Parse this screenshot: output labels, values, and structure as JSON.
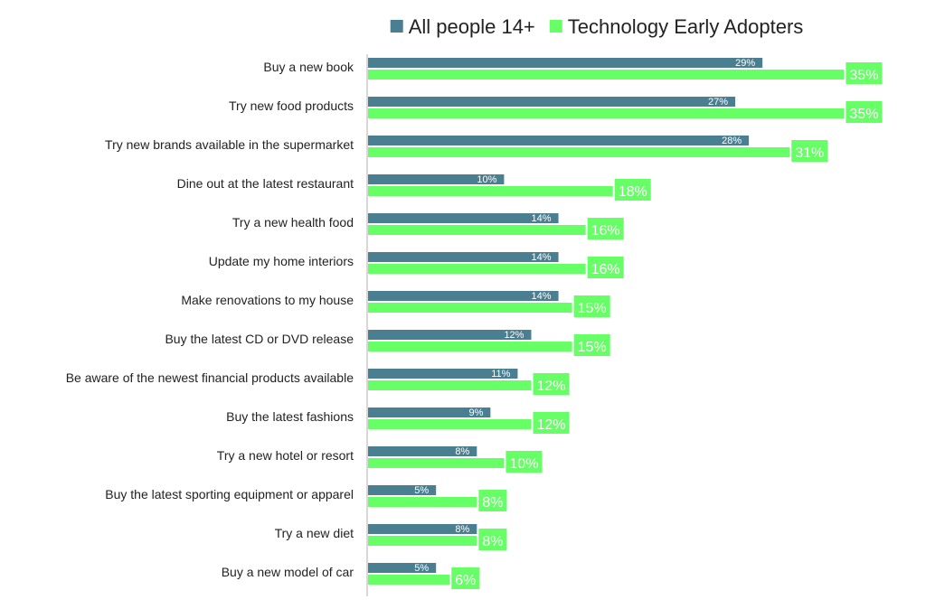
{
  "chart_data": {
    "type": "bar",
    "orientation": "horizontal",
    "categories": [
      "Buy a new book",
      "Try new food products",
      "Try new brands available in the supermarket",
      "Dine out at the latest restaurant",
      "Try a new health food",
      "Update my home interiors",
      "Make renovations to my house",
      "Buy the latest CD or DVD release",
      "Be aware of the newest financial products available",
      "Buy the latest fashions",
      "Try a new hotel or resort",
      "Buy the latest sporting equipment or apparel",
      "Try a new diet",
      "Buy a new model of car"
    ],
    "series": [
      {
        "name": "All people 14+",
        "color": "#4a7f92",
        "values": [
          29,
          27,
          28,
          10,
          14,
          14,
          14,
          12,
          11,
          9,
          8,
          5,
          8,
          5
        ],
        "labels": [
          "29%",
          "27%",
          "28%",
          "10%",
          "14%",
          "14%",
          "14%",
          "12%",
          "11%",
          "9%",
          "8%",
          "5%",
          "8%",
          "5%"
        ]
      },
      {
        "name": "Technology Early Adopters",
        "color": "#66ff66",
        "values": [
          35,
          35,
          31,
          18,
          16,
          16,
          15,
          15,
          12,
          12,
          10,
          8,
          8,
          6
        ],
        "labels": [
          "35%",
          "35%",
          "31%",
          "18%",
          "16%",
          "16%",
          "15%",
          "15%",
          "12%",
          "12%",
          "10%",
          "8%",
          "8%",
          "6%"
        ]
      }
    ],
    "legend": {
      "position": "top",
      "items": [
        "All people 14+",
        "Technology Early Adopters"
      ]
    },
    "xlim": [
      0,
      38
    ],
    "grid": false,
    "title": "",
    "xlabel": "",
    "ylabel": ""
  }
}
